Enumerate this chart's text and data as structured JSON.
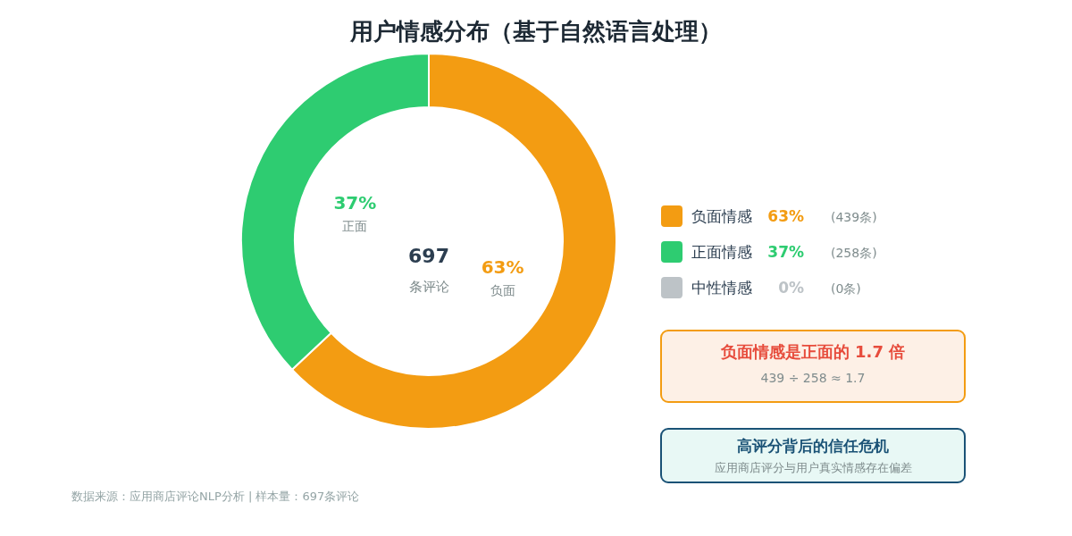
{
  "chart_data": {
    "type": "donut",
    "title": "用户情感分布（基于自然语言处理）",
    "categories": [
      "负面情感",
      "正面情感",
      "中性情感"
    ],
    "values": [
      63,
      37,
      0
    ],
    "colors": [
      "#f39c12",
      "#2ecc71",
      "#bdc3c7"
    ],
    "value_labels": [
      "63%",
      "37%",
      "0%"
    ],
    "legend": "right",
    "annotations": [
      "697",
      "条评论",
      "负面",
      "正面",
      "(439条)",
      "(258条)",
      "(0条)",
      "负面情感是正面的 1.7 倍",
      "439 ÷ 258 ≈ 1.7",
      "高评分背后的信任危机",
      "应用商店评分与用户真实情感存在偏差",
      "数据来源：应用商店评论NLP分析 | 样本量：697条评论"
    ]
  }
}
